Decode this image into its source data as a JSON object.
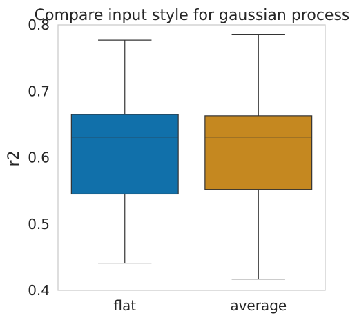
{
  "chart_data": {
    "type": "box",
    "title": "Compare input style for gaussian process",
    "xlabel": "",
    "ylabel": "r2",
    "ylim": [
      0.4,
      0.8
    ],
    "yticks": [
      0.4,
      0.5,
      0.6,
      0.7,
      0.8
    ],
    "ytick_labels": [
      "0.4",
      "0.5",
      "0.6",
      "0.7",
      "0.8"
    ],
    "grid": false,
    "categories": [
      "flat",
      "average"
    ],
    "boxes": [
      {
        "category": "flat",
        "whisker_low": 0.441,
        "q1": 0.545,
        "median": 0.631,
        "q3": 0.665,
        "whisker_high": 0.777,
        "color": "#1170aa"
      },
      {
        "category": "average",
        "whisker_low": 0.417,
        "q1": 0.552,
        "median": 0.631,
        "q3": 0.663,
        "whisker_high": 0.785,
        "color": "#c58820"
      }
    ],
    "colors": {
      "frame": "#cccccc",
      "line": "#333333"
    }
  }
}
